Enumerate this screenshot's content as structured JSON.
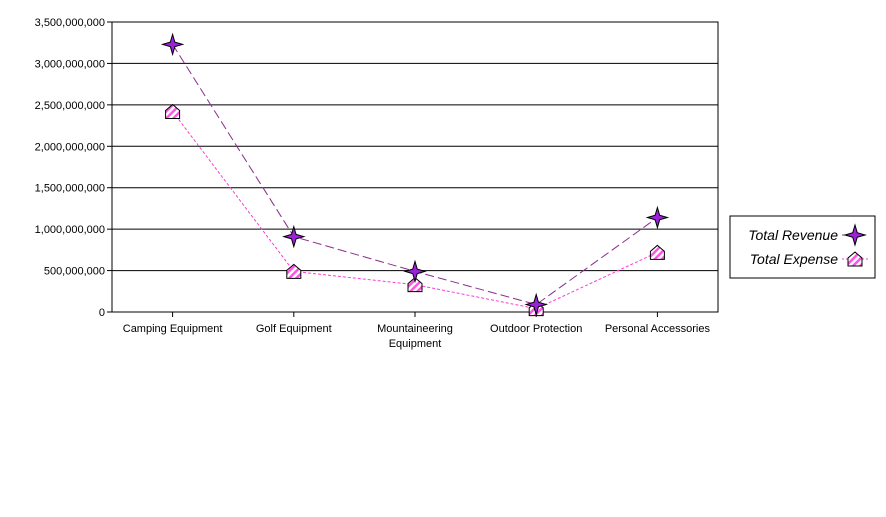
{
  "chart_data": {
    "type": "line",
    "categories": [
      [
        "Camping Equipment"
      ],
      [
        "Golf Equipment"
      ],
      [
        "Mountaineering",
        "Equipment"
      ],
      [
        "Outdoor Protection"
      ],
      [
        "Personal Accessories"
      ]
    ],
    "series": [
      {
        "name": "Total Revenue",
        "values": [
          3230000000,
          910000000,
          490000000,
          90000000,
          1140000000
        ],
        "color": "#8b2d8b",
        "marker": "star",
        "marker_fill": "#9a22d8",
        "dash": "dashed"
      },
      {
        "name": "Total Expense",
        "values": [
          2420000000,
          490000000,
          330000000,
          40000000,
          720000000
        ],
        "color": "#ff3ad8",
        "marker": "house",
        "marker_fill": "#ff55e6",
        "dash": "dotted"
      }
    ],
    "y_ticks": [
      "0",
      "500,000,000",
      "1,000,000,000",
      "1,500,000,000",
      "2,000,000,000",
      "2,500,000,000",
      "3,000,000,000",
      "3,500,000,000"
    ],
    "ylim": [
      0,
      3500000000
    ],
    "grid": true,
    "legend": "right"
  }
}
